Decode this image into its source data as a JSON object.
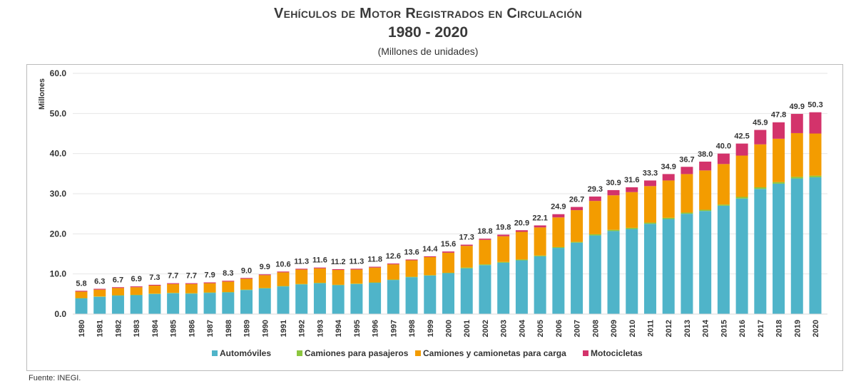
{
  "chart_data": {
    "type": "bar",
    "stacked": true,
    "title": "Vehículos de Motor Registrados en Circulación",
    "subtitle": "1980 - 2020",
    "units_note": "(Millones de unidades)",
    "ylabel": "Millones",
    "xlabel": "",
    "ylim": [
      0,
      60
    ],
    "yticks": [
      "0.0",
      "10.0",
      "20.0",
      "30.0",
      "40.0",
      "50.0",
      "60.0"
    ],
    "grid": true,
    "legend_position": "bottom",
    "categories": [
      "1980",
      "1981",
      "1982",
      "1983",
      "1984",
      "1985",
      "1986",
      "1987",
      "1988",
      "1989",
      "1990",
      "1991",
      "1992",
      "1993",
      "1994",
      "1995",
      "1996",
      "1997",
      "1998",
      "1999",
      "2000",
      "2001",
      "2002",
      "2003",
      "2004",
      "2005",
      "2006",
      "2007",
      "2008",
      "2009",
      "2010",
      "2011",
      "2012",
      "2013",
      "2014",
      "2015",
      "2016",
      "2017",
      "2018",
      "2019",
      "2020"
    ],
    "series": [
      {
        "name": "Automóviles",
        "color": "#4fb4c9",
        "values": [
          3.9,
          4.3,
          4.6,
          4.7,
          5.0,
          5.2,
          5.1,
          5.3,
          5.4,
          6.0,
          6.4,
          6.9,
          7.4,
          7.7,
          7.2,
          7.5,
          7.8,
          8.5,
          9.2,
          9.6,
          10.2,
          11.4,
          12.2,
          12.8,
          13.4,
          14.4,
          16.5,
          17.8,
          19.6,
          20.7,
          21.2,
          22.5,
          23.7,
          25.0,
          25.7,
          27.0,
          28.8,
          31.2,
          32.5,
          33.8,
          34.1
        ]
      },
      {
        "name": "Camiones para pasajeros",
        "color": "#8cc63f",
        "values": [
          0.1,
          0.1,
          0.1,
          0.1,
          0.1,
          0.1,
          0.1,
          0.1,
          0.1,
          0.1,
          0.1,
          0.1,
          0.1,
          0.1,
          0.1,
          0.1,
          0.1,
          0.1,
          0.1,
          0.1,
          0.1,
          0.2,
          0.2,
          0.2,
          0.2,
          0.2,
          0.2,
          0.2,
          0.3,
          0.3,
          0.3,
          0.3,
          0.3,
          0.3,
          0.3,
          0.3,
          0.4,
          0.4,
          0.4,
          0.4,
          0.4
        ]
      },
      {
        "name": "Camiones y camionetas para carga",
        "color": "#f39c00",
        "values": [
          1.6,
          1.7,
          1.8,
          1.9,
          2.0,
          2.2,
          2.3,
          2.3,
          2.6,
          2.7,
          3.2,
          3.4,
          3.6,
          3.6,
          3.7,
          3.5,
          3.7,
          3.8,
          4.1,
          4.5,
          5.0,
          5.4,
          6.1,
          6.4,
          6.9,
          7.0,
          7.4,
          7.9,
          8.3,
          8.6,
          8.9,
          9.1,
          9.3,
          9.6,
          9.8,
          10.1,
          10.3,
          10.7,
          10.8,
          10.9,
          10.5
        ]
      },
      {
        "name": "Motocicletas",
        "color": "#d3336b",
        "values": [
          0.2,
          0.2,
          0.2,
          0.2,
          0.2,
          0.2,
          0.2,
          0.2,
          0.2,
          0.2,
          0.2,
          0.2,
          0.2,
          0.2,
          0.2,
          0.2,
          0.2,
          0.2,
          0.2,
          0.2,
          0.3,
          0.3,
          0.3,
          0.4,
          0.4,
          0.5,
          0.8,
          0.8,
          1.1,
          1.3,
          1.2,
          1.4,
          1.6,
          1.8,
          2.2,
          2.6,
          3.0,
          3.6,
          4.1,
          4.8,
          5.3
        ]
      }
    ],
    "totals": [
      "5.8",
      "6.3",
      "6.7",
      "6.9",
      "7.3",
      "7.7",
      "7.7",
      "7.9",
      "8.3",
      "9.0",
      "9.9",
      "10.6",
      "11.3",
      "11.6",
      "11.2",
      "11.3",
      "11.8",
      "12.6",
      "13.6",
      "14.4",
      "15.6",
      "17.3",
      "18.8",
      "19.8",
      "20.9",
      "22.1",
      "24.9",
      "26.7",
      "29.3",
      "30.9",
      "31.6",
      "33.3",
      "34.9",
      "36.7",
      "38.0",
      "40.0",
      "42.5",
      "45.9",
      "47.8",
      "49.9",
      "50.3"
    ]
  },
  "source": "Fuente: INEGI."
}
